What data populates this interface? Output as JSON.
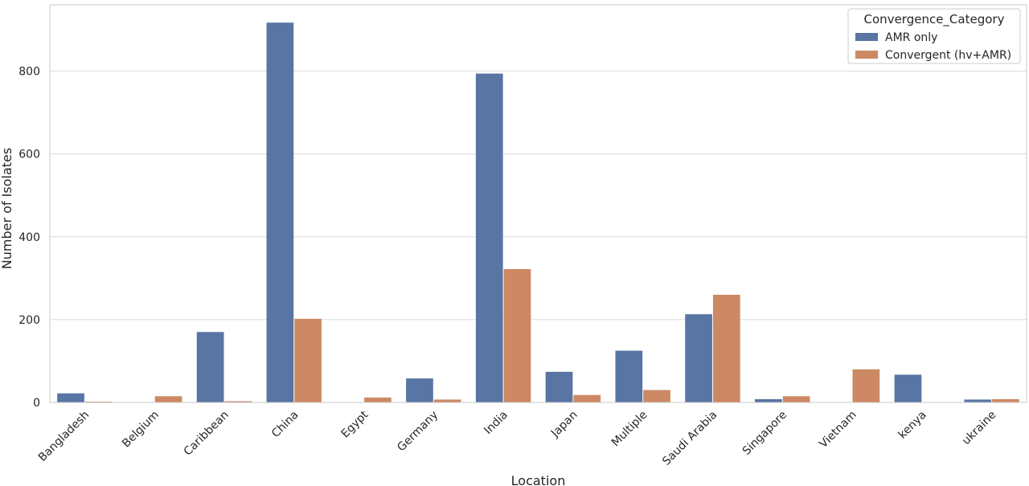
{
  "chart_data": {
    "type": "bar",
    "xlabel": "Location",
    "ylabel": "Number of Isolates",
    "ylim": [
      0,
      960
    ],
    "yticks": [
      0,
      200,
      400,
      600,
      800
    ],
    "grid": true,
    "legend": {
      "title": "Convergence_Category",
      "placement": "top-right"
    },
    "categories": [
      "Bangladesh",
      "Belgium",
      "Caribbean",
      "China",
      "Egypt",
      "Germany",
      "India",
      "Japan",
      "Multiple",
      "Saudi Arabia",
      "Singapore",
      "Vietnam",
      "kenya",
      "ukraine"
    ],
    "series": [
      {
        "name": "AMR only",
        "color": "#5875a4",
        "values": [
          22,
          1,
          170,
          917,
          1,
          58,
          794,
          74,
          125,
          213,
          8,
          1,
          67,
          7
        ]
      },
      {
        "name": "Convergent (hv+AMR)",
        "color": "#cc8963",
        "values": [
          2,
          15,
          3,
          202,
          12,
          7,
          322,
          18,
          30,
          260,
          15,
          80,
          1,
          8
        ]
      }
    ]
  }
}
